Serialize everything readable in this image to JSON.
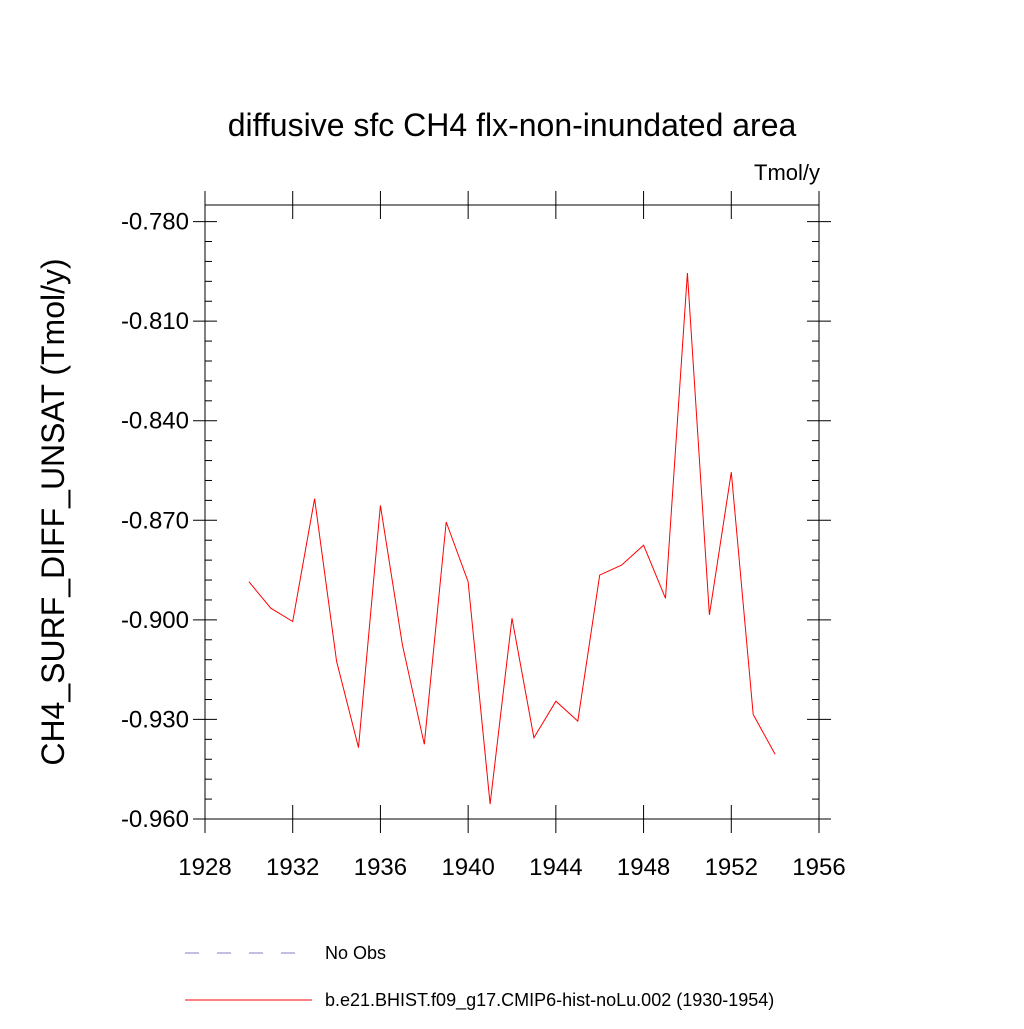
{
  "chart_data": {
    "type": "line",
    "title": "diffusive sfc CH4 flx-non-inundated area",
    "units": "Tmol/y",
    "xlabel": "",
    "ylabel": "CH4_SURF_DIFF_UNSAT  (Tmol/y)",
    "xlim": [
      1928,
      1956
    ],
    "ylim": [
      -0.96,
      -0.775
    ],
    "x_ticks": [
      1928,
      1932,
      1936,
      1940,
      1944,
      1948,
      1952,
      1956
    ],
    "x_tick_labels": [
      "1928",
      "1932",
      "1936",
      "1940",
      "1944",
      "1948",
      "1952",
      "1956"
    ],
    "y_ticks": [
      -0.96,
      -0.93,
      -0.9,
      -0.87,
      -0.84,
      -0.81,
      -0.78
    ],
    "y_tick_labels": [
      "-0.960",
      "-0.930",
      "-0.900",
      "-0.870",
      "-0.840",
      "-0.810",
      "-0.780"
    ],
    "grid": false,
    "legend_position": "bottom",
    "series": [
      {
        "name": "No Obs",
        "color": "#8080c0",
        "style": "dashed",
        "x": [],
        "y": []
      },
      {
        "name": "b.e21.BHIST.f09_g17.CMIP6-hist-noLu.002 (1930-1954)",
        "color": "#ff0000",
        "style": "solid",
        "x": [
          1930,
          1931,
          1932,
          1933,
          1934,
          1935,
          1936,
          1937,
          1938,
          1939,
          1940,
          1941,
          1942,
          1943,
          1944,
          1945,
          1946,
          1947,
          1948,
          1949,
          1950,
          1951,
          1952,
          1953,
          1954
        ],
        "y": [
          -0.8885,
          -0.8965,
          -0.9005,
          -0.8635,
          -0.9125,
          -0.9385,
          -0.8655,
          -0.9075,
          -0.9375,
          -0.8705,
          -0.8885,
          -0.9555,
          -0.8995,
          -0.9355,
          -0.9245,
          -0.9305,
          -0.8865,
          -0.8835,
          -0.8775,
          -0.8935,
          -0.7955,
          -0.8985,
          -0.8555,
          -0.9285,
          -0.9405
        ]
      }
    ]
  }
}
